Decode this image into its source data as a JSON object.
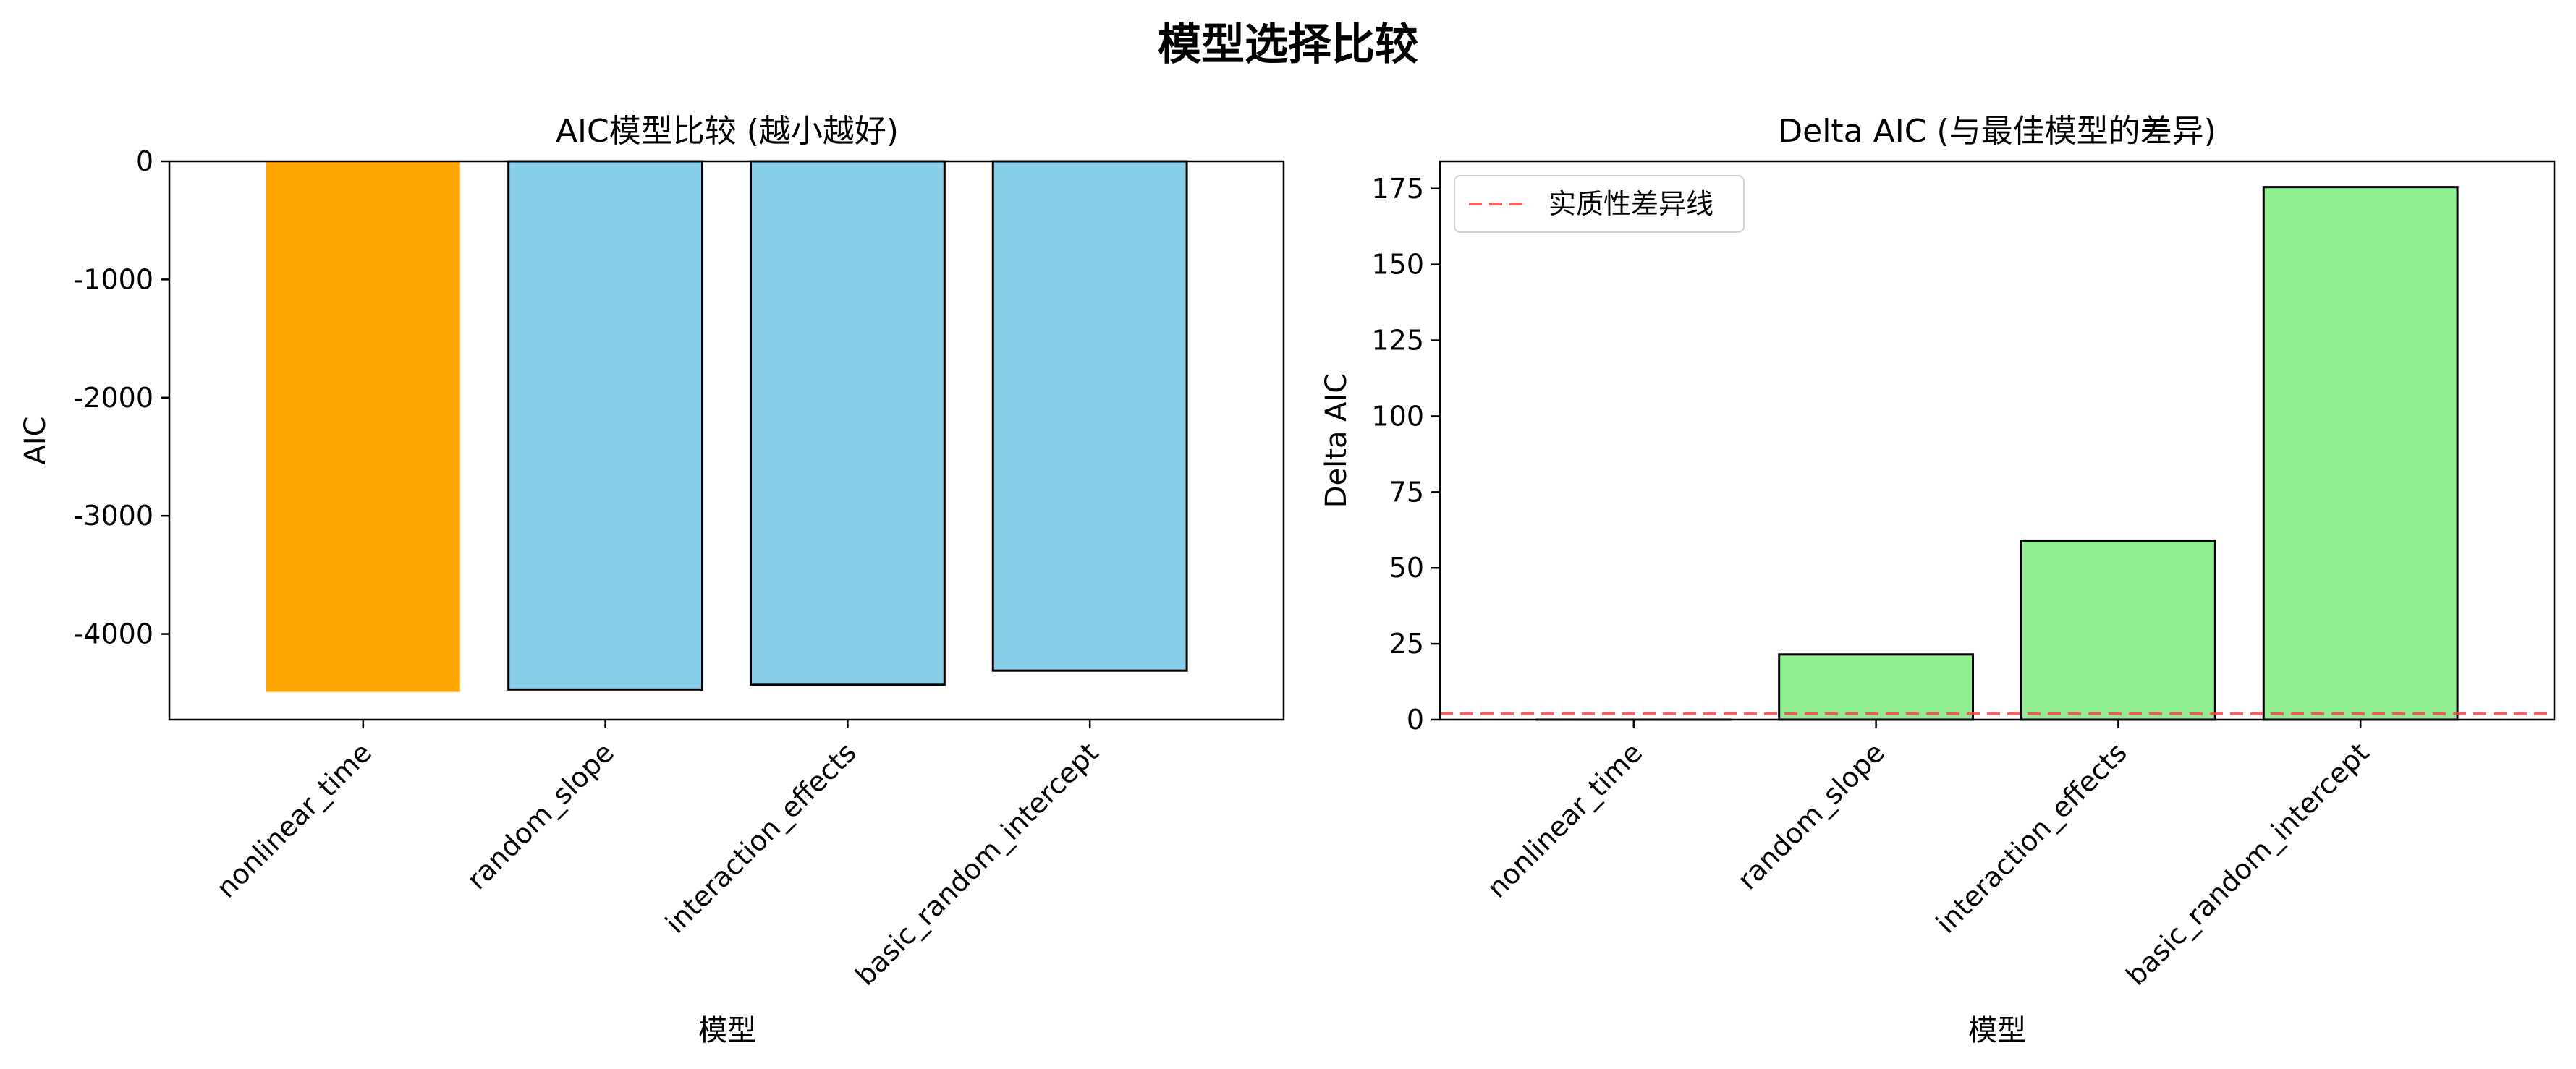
{
  "suptitle": "模型选择比较",
  "chart_data": [
    {
      "type": "bar",
      "title": "AIC模型比较 (越小越好)",
      "xlabel": "模型",
      "ylabel": "AIC",
      "categories": [
        "nonlinear_time",
        "random_slope",
        "interaction_effects",
        "basic_random_intercept"
      ],
      "values": [
        -4490,
        -4470,
        -4430,
        -4310
      ],
      "colors": [
        "#FFA500",
        "#87CEEB",
        "#87CEEB",
        "#87CEEB"
      ],
      "ylim": [
        -4725,
        0
      ],
      "yticks": [
        0,
        -1000,
        -2000,
        -3000,
        -4000
      ],
      "ytick_labels": [
        "0",
        "-1000",
        "-2000",
        "-3000",
        "-4000"
      ],
      "grid": false
    },
    {
      "type": "bar",
      "title": "Delta AIC (与最佳模型的差异)",
      "xlabel": "模型",
      "ylabel": "Delta AIC",
      "categories": [
        "nonlinear_time",
        "random_slope",
        "interaction_effects",
        "basic_random_intercept"
      ],
      "values": [
        0,
        21.5,
        59,
        175.5
      ],
      "colors": [
        "#90EE90",
        "#90EE90",
        "#90EE90",
        "#90EE90"
      ],
      "ylim": [
        0,
        184
      ],
      "yticks": [
        0,
        25,
        50,
        75,
        100,
        125,
        150,
        175
      ],
      "ytick_labels": [
        "0",
        "25",
        "50",
        "75",
        "100",
        "125",
        "150",
        "175"
      ],
      "reference_line": {
        "y": 2,
        "label": "实质性差异线",
        "color": "#FF4444",
        "style": "dashed"
      },
      "legend": {
        "placement": "top-left",
        "entries": [
          "实质性差异线"
        ]
      },
      "grid": false
    }
  ]
}
